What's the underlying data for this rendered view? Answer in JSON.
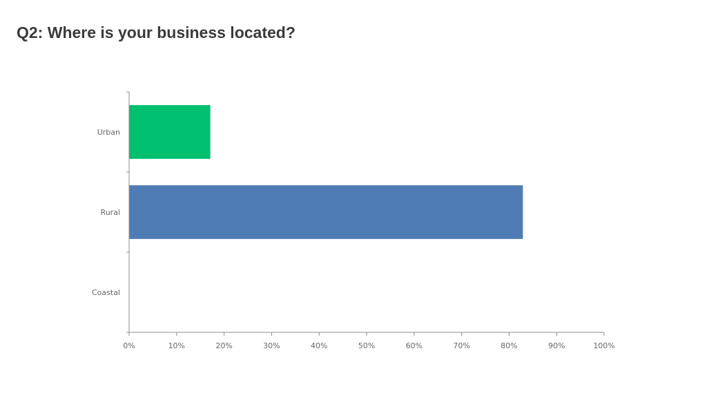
{
  "title": "Q2: Where is your business located?",
  "chart_data": {
    "type": "bar",
    "orientation": "horizontal",
    "categories": [
      "Urban",
      "Rural",
      "Coastal"
    ],
    "values": [
      17.1,
      82.9,
      0
    ],
    "colors": [
      "#00C06F",
      "#4F7CB4",
      "#4F7CB4"
    ],
    "xlim": [
      0,
      100
    ],
    "x_ticks": [
      0,
      10,
      20,
      30,
      40,
      50,
      60,
      70,
      80,
      90,
      100
    ],
    "x_tick_labels": [
      "0%",
      "10%",
      "20%",
      "30%",
      "40%",
      "50%",
      "60%",
      "70%",
      "80%",
      "90%",
      "100%"
    ],
    "grid": false,
    "legend": "none"
  }
}
